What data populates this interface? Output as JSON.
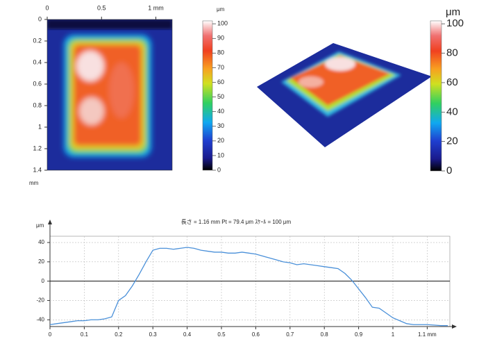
{
  "chart_data": [
    {
      "type": "heatmap",
      "xlim": [
        0,
        1.15
      ],
      "xticks": [
        0,
        0.5,
        {
          "value": 1,
          "label": "1 mm"
        }
      ],
      "ylim": [
        0,
        1.4
      ],
      "yticks": [
        0,
        0.2,
        0.4,
        0.6,
        0.8,
        1,
        1.2,
        1.4
      ],
      "ylabel": "mm",
      "colorbar": {
        "label": "μm",
        "lim": [
          0,
          102
        ],
        "ticks": [
          0,
          10,
          20,
          30,
          40,
          50,
          60,
          70,
          80,
          90,
          100
        ]
      }
    },
    {
      "type": "surface3d",
      "colorbar": {
        "label": "μm",
        "lim": [
          0,
          102
        ],
        "ticks": [
          0,
          20,
          40,
          60,
          80,
          100
        ]
      }
    },
    {
      "type": "line",
      "title": "長さ = 1.16 mm  Pt = 79.4 μm  ｽｹｰﾙ = 100 μm",
      "ylabel": "μm",
      "color": "#4a90d9",
      "grid": true,
      "xlim": [
        0,
        1.166
      ],
      "ylim": [
        -47,
        46.5
      ],
      "xticks": [
        0,
        0.1,
        0.2,
        0.3,
        0.4,
        0.5,
        0.6,
        0.7,
        0.8,
        0.9,
        1,
        {
          "value": 1.1,
          "label": "1.1 mm"
        }
      ],
      "yticks": [
        -40,
        -20,
        0,
        20,
        40
      ],
      "x": [
        0,
        0.02,
        0.04,
        0.06,
        0.08,
        0.1,
        0.12,
        0.14,
        0.16,
        0.18,
        0.2,
        0.22,
        0.24,
        0.26,
        0.28,
        0.3,
        0.32,
        0.34,
        0.36,
        0.38,
        0.4,
        0.42,
        0.44,
        0.46,
        0.48,
        0.5,
        0.52,
        0.54,
        0.56,
        0.58,
        0.6,
        0.62,
        0.64,
        0.66,
        0.68,
        0.7,
        0.72,
        0.74,
        0.76,
        0.78,
        0.8,
        0.82,
        0.84,
        0.86,
        0.88,
        0.9,
        0.92,
        0.94,
        0.96,
        0.98,
        1,
        1.02,
        1.04,
        1.06,
        1.08,
        1.1,
        1.12,
        1.14,
        1.16
      ],
      "values": [
        -45,
        -44,
        -43,
        -42,
        -41,
        -41,
        -40,
        -40,
        -39,
        -37,
        -20,
        -15,
        -5,
        7,
        20,
        32,
        34,
        34,
        33,
        34,
        35,
        34,
        32,
        31,
        30,
        30,
        29,
        29,
        30,
        29,
        28,
        26,
        24,
        22,
        20,
        19,
        17,
        18,
        17,
        16,
        15,
        14,
        13,
        8,
        1,
        -8,
        -17,
        -27,
        -28,
        -33,
        -38,
        -41,
        -44,
        -45,
        -45,
        -45,
        -45.5,
        -46,
        -46
      ]
    }
  ]
}
